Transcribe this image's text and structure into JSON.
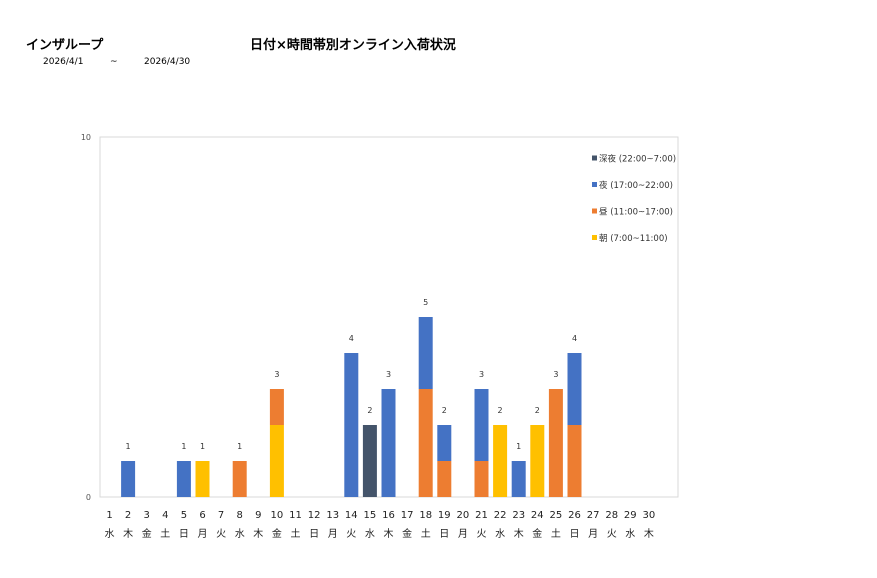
{
  "header": {
    "company": "インザループ",
    "title": "日付×時間帯別オンライン入荷状況",
    "date_from": "2026/4/1",
    "date_sep": "~",
    "date_to": "2026/4/30"
  },
  "chart_data": {
    "type": "bar",
    "stacked": true,
    "title": "日付×時間帯別オンライン入荷状況",
    "xlabel": "",
    "ylabel": "",
    "ylim": [
      0,
      10
    ],
    "y_ticks": [
      "0",
      "10"
    ],
    "grid": false,
    "legend_position": "top-right",
    "categories": [
      "1",
      "2",
      "3",
      "4",
      "5",
      "6",
      "7",
      "8",
      "9",
      "10",
      "11",
      "12",
      "13",
      "14",
      "15",
      "16",
      "17",
      "18",
      "19",
      "20",
      "21",
      "22",
      "23",
      "24",
      "25",
      "26",
      "27",
      "28",
      "29",
      "30"
    ],
    "weekdays": [
      "水",
      "木",
      "金",
      "土",
      "日",
      "月",
      "火",
      "水",
      "木",
      "金",
      "土",
      "日",
      "月",
      "火",
      "水",
      "木",
      "金",
      "土",
      "日",
      "月",
      "火",
      "水",
      "木",
      "金",
      "土",
      "日",
      "月",
      "火",
      "水",
      "木"
    ],
    "series": [
      {
        "name": "朝 (7:00~11:00)",
        "color": "#FFC000",
        "values": [
          0,
          0,
          0,
          0,
          0,
          1,
          0,
          0,
          0,
          2,
          0,
          0,
          0,
          0,
          0,
          0,
          0,
          0,
          0,
          0,
          0,
          2,
          0,
          2,
          0,
          0,
          0,
          0,
          0,
          0
        ]
      },
      {
        "name": "昼 (11:00~17:00)",
        "color": "#ED7D31",
        "values": [
          0,
          0,
          0,
          0,
          0,
          0,
          0,
          1,
          0,
          1,
          0,
          0,
          0,
          0,
          0,
          0,
          0,
          3,
          1,
          0,
          1,
          0,
          0,
          0,
          3,
          2,
          0,
          0,
          0,
          0
        ]
      },
      {
        "name": "夜 (17:00~22:00)",
        "color": "#4472C4",
        "values": [
          0,
          1,
          0,
          0,
          1,
          0,
          0,
          0,
          0,
          0,
          0,
          0,
          0,
          4,
          0,
          3,
          0,
          2,
          1,
          0,
          2,
          0,
          1,
          0,
          0,
          2,
          0,
          0,
          0,
          0
        ]
      },
      {
        "name": "深夜 (22:00~7:00)",
        "color": "#44546A",
        "values": [
          0,
          0,
          0,
          0,
          0,
          0,
          0,
          0,
          0,
          0,
          0,
          0,
          0,
          0,
          2,
          0,
          0,
          0,
          0,
          0,
          0,
          0,
          0,
          0,
          0,
          0,
          0,
          0,
          0,
          0
        ]
      }
    ],
    "totals": [
      "",
      "1",
      "",
      "",
      "1",
      "1",
      "",
      "1",
      "",
      "3",
      "",
      "",
      "",
      "4",
      "2",
      "3",
      "",
      "5",
      "2",
      "",
      "3",
      "2",
      "1",
      "2",
      "3",
      "4",
      "",
      "",
      "",
      ""
    ],
    "legend_order": [
      3,
      2,
      1,
      0
    ]
  }
}
